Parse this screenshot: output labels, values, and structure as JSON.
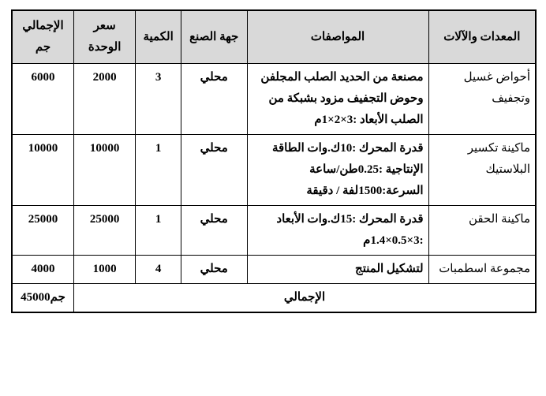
{
  "table": {
    "headers": {
      "equipment": "المعدات والآلات",
      "specs": "المواصفات",
      "manufacturer": "جهة الصنع",
      "quantity": "الكمية",
      "unit_price": "سعر الوحدة",
      "total": "الإجمالي جم"
    },
    "rows": [
      {
        "equipment": "أحواض غسيل وتجفيف",
        "specs": "مصنعة من الحديد الصلب المجلفن وحوض التجفيف مزود بشبكة من الصلب الأبعاد :3×2×1م",
        "manufacturer": "محلي",
        "quantity": "3",
        "unit_price": "2000",
        "total": "6000"
      },
      {
        "equipment": "ماكينة تكسير البلاستيك",
        "specs": "قدرة المحرك :10ك.وات الطاقة الإنتاجية :0.25طن/ساعة السرعة:1500لفة / دقيقة",
        "manufacturer": "محلي",
        "quantity": "1",
        "unit_price": "10000",
        "total": "10000"
      },
      {
        "equipment": "ماكينة الحقن",
        "specs": "قدرة المحرك :15ك.وات الأبعاد :3×0.5×1.4م",
        "manufacturer": "محلي",
        "quantity": "1",
        "unit_price": "25000",
        "total": "25000"
      },
      {
        "equipment": "مجموعة اسطمبات",
        "specs": "لتشكيل المنتج",
        "manufacturer": "محلي",
        "quantity": "4",
        "unit_price": "1000",
        "total": "4000"
      }
    ],
    "footer": {
      "label": "الإجمالي",
      "value": "45000جم"
    }
  },
  "style": {
    "header_bg": "#d9d9d9",
    "border_color": "#000000",
    "background": "#ffffff",
    "font_size": 15
  }
}
